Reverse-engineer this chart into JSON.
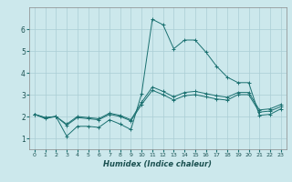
{
  "title": "",
  "xlabel": "Humidex (Indice chaleur)",
  "bg_color": "#cce8ec",
  "grid_color": "#aacdd4",
  "line_color": "#1a7070",
  "xlim": [
    -0.5,
    23.5
  ],
  "ylim": [
    0.5,
    7.0
  ],
  "xticks": [
    0,
    1,
    2,
    3,
    4,
    5,
    6,
    7,
    8,
    9,
    10,
    11,
    12,
    13,
    14,
    15,
    16,
    17,
    18,
    19,
    20,
    21,
    22,
    23
  ],
  "yticks": [
    1,
    2,
    3,
    4,
    5,
    6
  ],
  "series": [
    {
      "x": [
        0,
        1,
        2,
        3,
        4,
        5,
        6,
        7,
        8,
        9,
        10,
        11,
        12,
        13,
        14,
        15,
        16,
        17,
        18,
        19,
        20,
        21,
        22,
        23
      ],
      "y": [
        2.1,
        1.9,
        2.0,
        1.1,
        1.55,
        1.55,
        1.5,
        1.85,
        1.65,
        1.4,
        3.05,
        6.45,
        6.2,
        5.1,
        5.5,
        5.5,
        4.95,
        4.3,
        3.8,
        3.55,
        3.55,
        2.05,
        2.1,
        2.35
      ]
    },
    {
      "x": [
        0,
        1,
        2,
        3,
        4,
        5,
        6,
        7,
        8,
        9,
        10,
        11,
        12,
        13,
        14,
        15,
        16,
        17,
        18,
        19,
        20,
        21,
        22,
        23
      ],
      "y": [
        2.1,
        1.95,
        2.0,
        1.6,
        1.95,
        1.9,
        1.85,
        2.1,
        2.0,
        1.8,
        2.55,
        3.2,
        3.0,
        2.75,
        2.95,
        3.0,
        2.9,
        2.8,
        2.75,
        3.0,
        3.0,
        2.2,
        2.25,
        2.45
      ]
    },
    {
      "x": [
        0,
        1,
        2,
        3,
        4,
        5,
        6,
        7,
        8,
        9,
        10,
        11,
        12,
        13,
        14,
        15,
        16,
        17,
        18,
        19,
        20,
        21,
        22,
        23
      ],
      "y": [
        2.1,
        1.95,
        2.0,
        1.65,
        2.0,
        1.95,
        1.9,
        2.15,
        2.05,
        1.85,
        2.65,
        3.35,
        3.15,
        2.9,
        3.1,
        3.15,
        3.05,
        2.95,
        2.88,
        3.1,
        3.1,
        2.3,
        2.35,
        2.55
      ]
    }
  ]
}
